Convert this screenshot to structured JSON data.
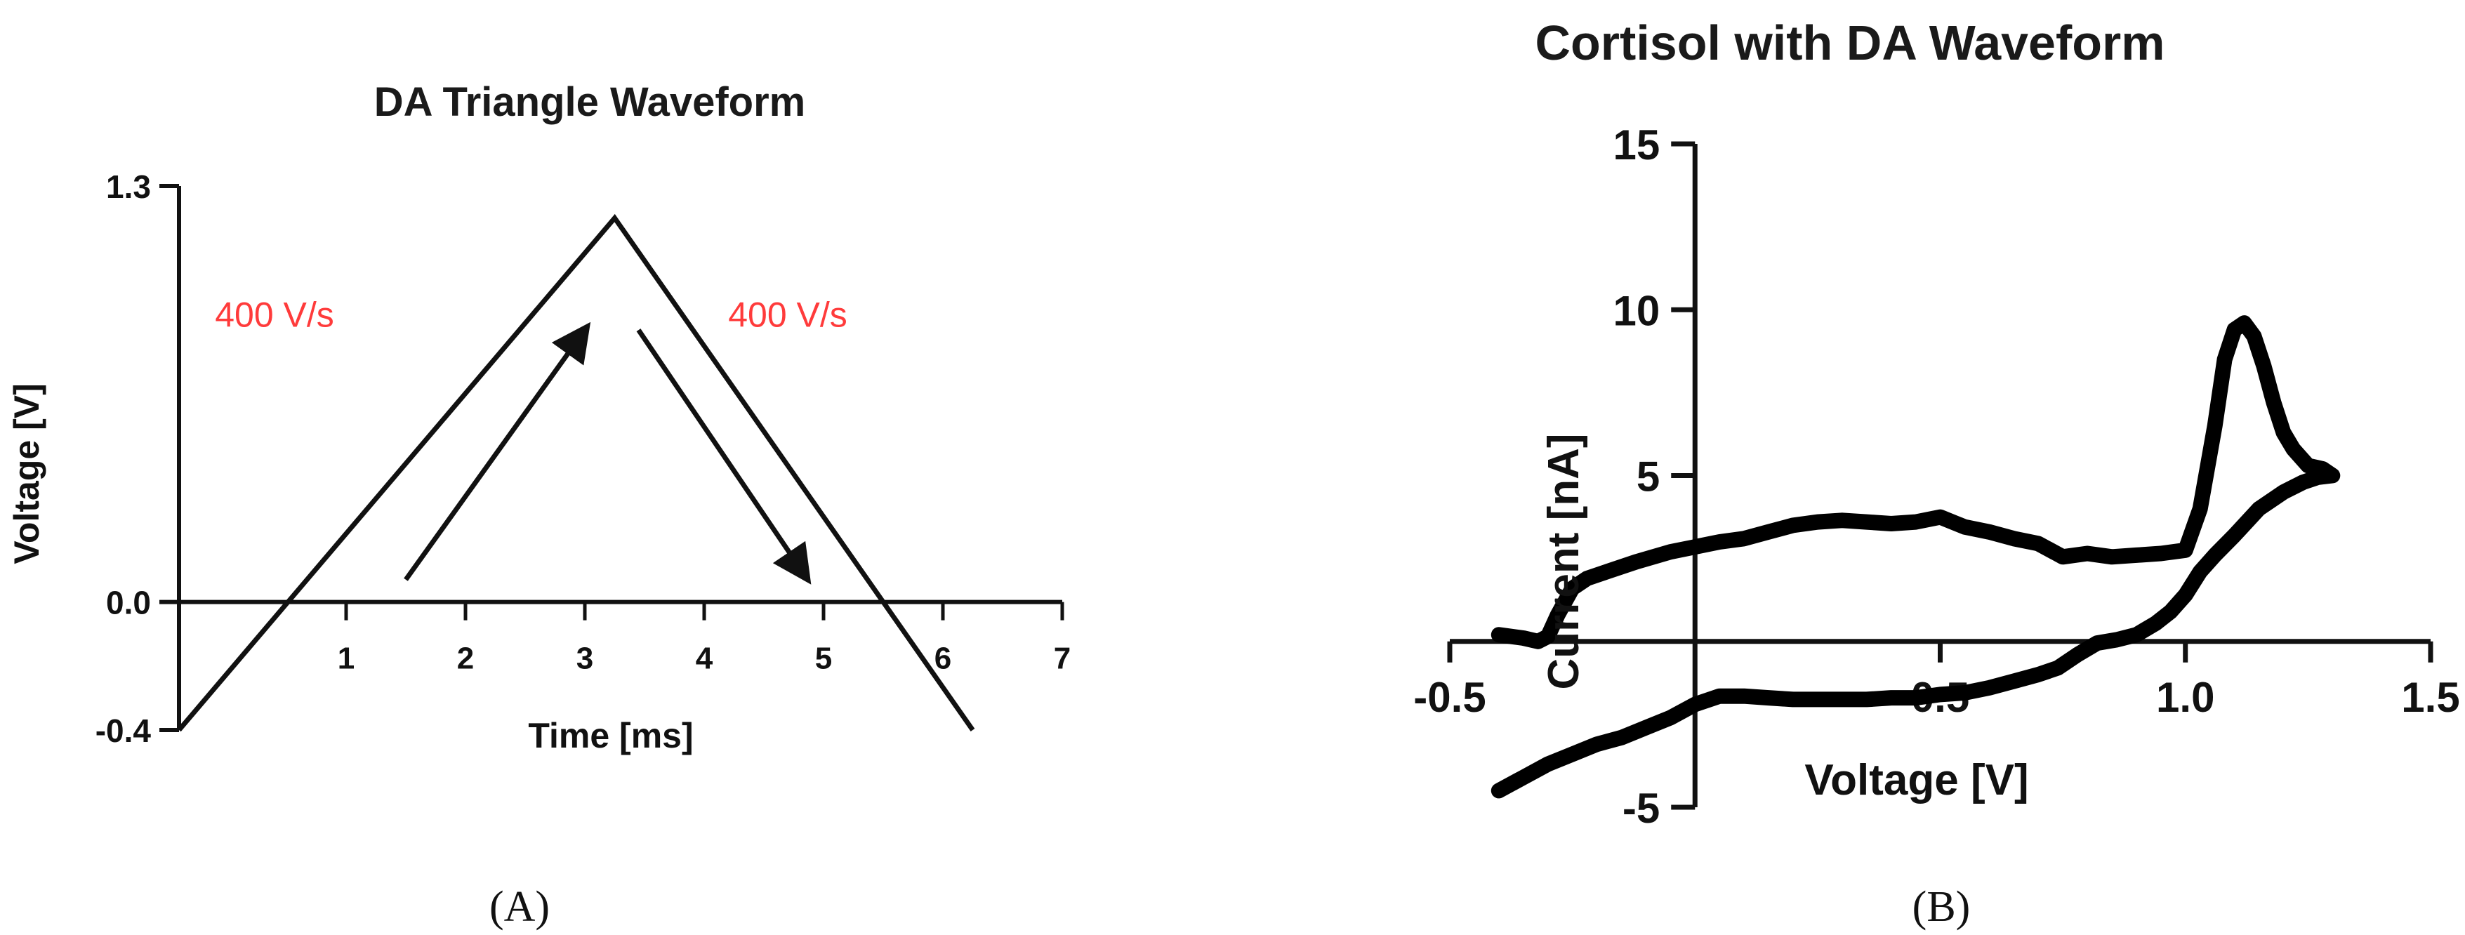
{
  "chart_data": [
    {
      "type": "line",
      "title": "DA Triangle Waveform",
      "xlabel": "Time [ms]",
      "ylabel": "Voltage [V]",
      "xlim": [
        -0.5,
        7
      ],
      "ylim": [
        -0.4,
        1.3
      ],
      "x_ticks": [
        "1",
        "2",
        "3",
        "4",
        "5",
        "6",
        "7"
      ],
      "y_ticks": [
        "1.3",
        "0.0",
        "-0.4"
      ],
      "series": [
        {
          "x": [
            -0.4,
            3.25,
            6.25
          ],
          "y": [
            -0.4,
            1.2,
            -0.4
          ]
        }
      ],
      "annotations": [
        {
          "text": "400 V/s",
          "color": "#ff3b3b",
          "x": 0.4,
          "y": 0.9
        },
        {
          "text": "400 V/s",
          "color": "#ff3b3b",
          "x": 4.7,
          "y": 0.9
        }
      ],
      "arrows": [
        {
          "from": [
            1.5,
            0.07
          ],
          "to": [
            3.0,
            0.85
          ]
        },
        {
          "from": [
            3.45,
            0.85
          ],
          "to": [
            4.85,
            0.08
          ]
        }
      ],
      "panel_label": "(A)"
    },
    {
      "type": "line",
      "title": "Cortisol with DA Waveform",
      "xlabel": "Voltage [V]",
      "ylabel": "Current [nA]",
      "xlim": [
        -0.5,
        1.5
      ],
      "ylim": [
        -5,
        15
      ],
      "x_ticks": [
        "-0.5",
        "0.5",
        "1.0",
        "1.5"
      ],
      "y_ticks": [
        "15",
        "10",
        "5",
        "-5"
      ],
      "series": [
        {
          "x": [
            -0.4,
            -0.35,
            -0.32,
            -0.3,
            -0.28,
            -0.25,
            -0.22,
            -0.18,
            -0.12,
            -0.05,
            0.0,
            0.05,
            0.1,
            0.15,
            0.2,
            0.25,
            0.3,
            0.35,
            0.4,
            0.45,
            0.5,
            0.55,
            0.6,
            0.65,
            0.7,
            0.75,
            0.8,
            0.85,
            0.9,
            0.95,
            1.0,
            1.03,
            1.06,
            1.08,
            1.1,
            1.12,
            1.14,
            1.16,
            1.18,
            1.2,
            1.22,
            1.25,
            1.28,
            1.3,
            1.27,
            1.24,
            1.2,
            1.15,
            1.1,
            1.06,
            1.03,
            1.0,
            0.97,
            0.94,
            0.9,
            0.86,
            0.82,
            0.78,
            0.74,
            0.7,
            0.65,
            0.6,
            0.55,
            0.5,
            0.45,
            0.4,
            0.35,
            0.3,
            0.25,
            0.2,
            0.15,
            0.1,
            0.05,
            0.0,
            -0.05,
            -0.1,
            -0.15,
            -0.2,
            -0.25,
            -0.3,
            -0.35,
            -0.4
          ],
          "y": [
            0.2,
            0.1,
            0.0,
            0.15,
            0.8,
            1.6,
            1.9,
            2.1,
            2.4,
            2.7,
            2.85,
            3.0,
            3.1,
            3.3,
            3.5,
            3.6,
            3.65,
            3.6,
            3.55,
            3.6,
            3.75,
            3.45,
            3.3,
            3.1,
            2.95,
            2.55,
            2.65,
            2.55,
            2.6,
            2.65,
            2.75,
            4.0,
            6.5,
            8.5,
            9.4,
            9.6,
            9.2,
            8.3,
            7.2,
            6.3,
            5.8,
            5.3,
            5.2,
            5.0,
            4.95,
            4.8,
            4.5,
            4.0,
            3.2,
            2.6,
            2.1,
            1.4,
            0.9,
            0.55,
            0.2,
            0.05,
            -0.05,
            -0.4,
            -0.8,
            -1.0,
            -1.2,
            -1.4,
            -1.55,
            -1.6,
            -1.7,
            -1.7,
            -1.75,
            -1.75,
            -1.75,
            -1.75,
            -1.7,
            -1.65,
            -1.65,
            -1.9,
            -2.3,
            -2.6,
            -2.9,
            -3.1,
            -3.4,
            -3.7,
            -4.1,
            -4.5
          ]
        }
      ],
      "panel_label": "(B)"
    }
  ]
}
